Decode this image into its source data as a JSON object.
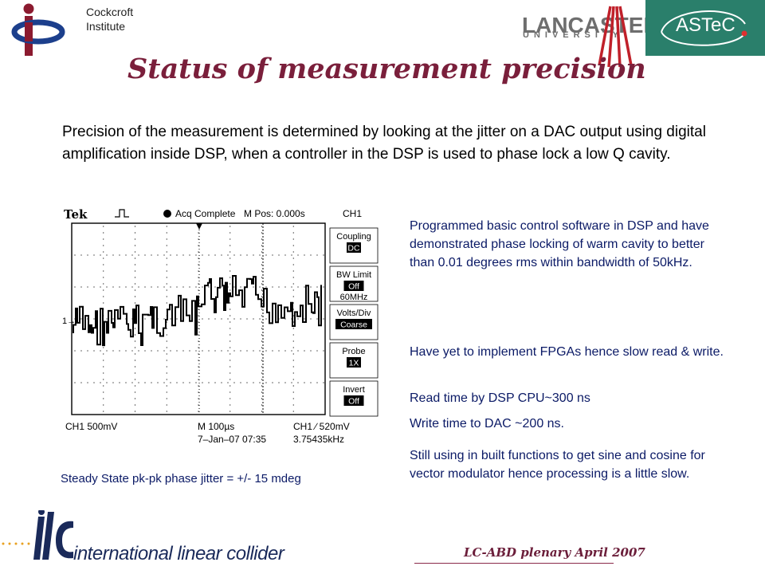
{
  "header": {
    "institute_line1": "Cockcroft",
    "institute_line2": "Institute",
    "university_name": "LANCASTER",
    "university_sub": "UNIVERSITY",
    "astec_label": "ASTeC"
  },
  "slide": {
    "title": "Status of measurement precision",
    "intro": "Precision of the measurement is determined by looking at the jitter on a DAC output using digital amplification inside DSP, when a controller in the DSP is used to phase lock a low Q cavity.",
    "right_points": [
      "Programmed basic control software in DSP and have demonstrated phase locking of warm cavity to better than 0.01 degrees rms within bandwidth of 50kHz.",
      "Have yet to implement FPGAs  hence slow read & write.",
      "Read time by DSP CPU~300 ns",
      "Write time to DAC ~200 ns.",
      "Still using in built functions to get sine and cosine for vector modulator hence processing is a little slow."
    ],
    "scope_caption": "Steady State pk-pk phase jitter = +/- 15 mdeg"
  },
  "scope": {
    "brand": "Tek",
    "status": "Acq Complete",
    "mpos": "M Pos: 0.000s",
    "channel": "CH1",
    "menu": [
      {
        "label": "Coupling",
        "value": "DC"
      },
      {
        "label": "BW Limit",
        "value": "Off",
        "extra": "60MHz"
      },
      {
        "label": "Volts/Div",
        "value": "Coarse"
      },
      {
        "label": "Probe",
        "value": "1X"
      },
      {
        "label": "Invert",
        "value": "Off"
      }
    ],
    "ch1_scale": "CH1  500mV",
    "time_scale": "M 100µs",
    "trigger": "CH1  ∕  520mV",
    "date": "7–Jan–07 07:35",
    "freq": "3.75435kHz",
    "marker_1": "1→"
  },
  "footer": {
    "ilc": "international linear collider",
    "event": "LC-ABD plenary April 2007"
  },
  "colors": {
    "title": "#7a1f3b",
    "right_text": "#0b1a66",
    "astec_bg": "#2a7f6b"
  }
}
